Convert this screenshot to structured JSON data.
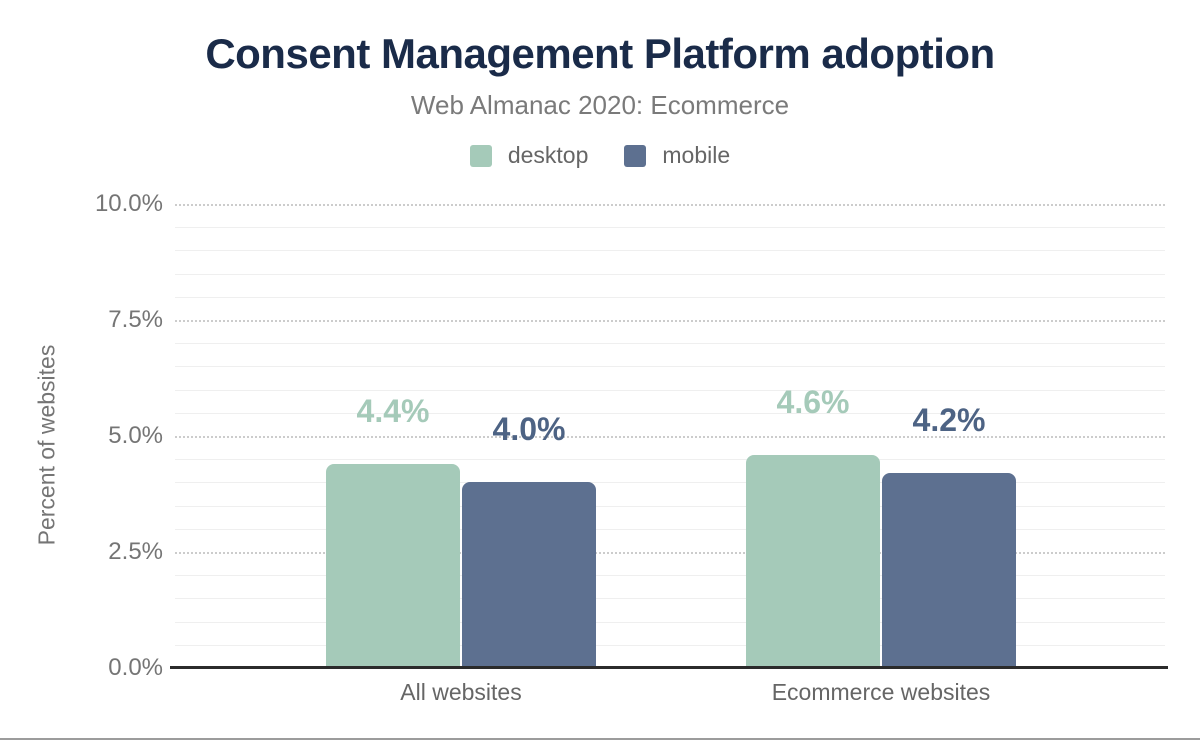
{
  "figure": {
    "title": "Consent Management Platform adoption",
    "subtitle": "Web Almanac 2020: Ecommerce"
  },
  "chart_data": {
    "type": "bar",
    "categories": [
      "All websites",
      "Ecommerce websites"
    ],
    "series": [
      {
        "name": "desktop",
        "color": "#a5cab9",
        "label_color": "#a5cab9",
        "values": [
          4.4,
          4.6
        ],
        "labels": [
          "4.4%",
          "4.6%"
        ]
      },
      {
        "name": "mobile",
        "color": "#5d7090",
        "label_color": "#4d6384",
        "values": [
          4.0,
          4.2
        ],
        "labels": [
          "4.0%",
          "4.2%"
        ]
      }
    ],
    "title": "Consent Management Platform adoption",
    "subtitle": "Web Almanac 2020: Ecommerce",
    "xlabel": "",
    "ylabel": "Percent of websites",
    "ylim": [
      0,
      10
    ],
    "ytick_labels": [
      "0.0%",
      "2.5%",
      "5.0%",
      "7.5%",
      "10.0%"
    ],
    "ytick_values": [
      0,
      2.5,
      5,
      7.5,
      10
    ],
    "minor_tick_step": 0.5,
    "grid": "major dotted, minor faint solid",
    "legend_position": "top"
  },
  "colors": {
    "title": "#1a2b49",
    "subtitle_text": "#7a7a7a",
    "axis_text": "#757575",
    "axis_line": "#2b2b2b",
    "major_grid": "#cccccc",
    "minor_grid": "#efefef",
    "bottom_rule": "#9c9c9c"
  }
}
